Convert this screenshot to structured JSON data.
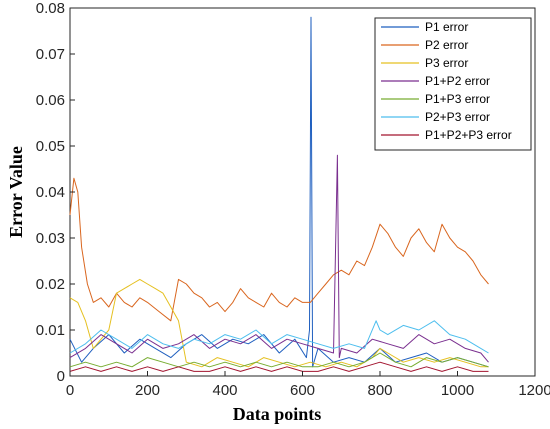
{
  "chart_data": {
    "type": "line",
    "title": "",
    "xlabel": "Data points",
    "ylabel": "Error Value",
    "xlim": [
      0,
      1200
    ],
    "ylim": [
      0,
      0.08
    ],
    "xticks": [
      "0",
      "200",
      "400",
      "600",
      "800",
      "1000",
      "1200"
    ],
    "yticks": [
      "0",
      "0.01",
      "0.02",
      "0.03",
      "0.04",
      "0.05",
      "0.06",
      "0.07",
      "0.08"
    ],
    "grid": false,
    "legend_position": "top-right",
    "series": [
      {
        "name": "P1 error",
        "color": "#1f5fbf",
        "x": [
          0,
          30,
          60,
          100,
          140,
          180,
          220,
          260,
          300,
          340,
          380,
          420,
          460,
          500,
          540,
          580,
          610,
          618,
          622,
          626,
          640,
          680,
          720,
          760,
          800,
          840,
          880,
          920,
          960,
          1000,
          1040,
          1080
        ],
        "y": [
          0.008,
          0.003,
          0.006,
          0.009,
          0.005,
          0.008,
          0.006,
          0.004,
          0.007,
          0.009,
          0.006,
          0.008,
          0.007,
          0.009,
          0.005,
          0.008,
          0.004,
          0.01,
          0.078,
          0.002,
          0.006,
          0.003,
          0.004,
          0.003,
          0.006,
          0.003,
          0.004,
          0.005,
          0.003,
          0.004,
          0.003,
          0.002
        ]
      },
      {
        "name": "P2 error",
        "color": "#d9661f",
        "x": [
          0,
          10,
          20,
          30,
          45,
          60,
          80,
          100,
          120,
          140,
          160,
          180,
          200,
          230,
          260,
          280,
          300,
          320,
          340,
          360,
          380,
          400,
          420,
          440,
          460,
          480,
          500,
          520,
          540,
          560,
          580,
          600,
          620,
          640,
          660,
          680,
          700,
          720,
          740,
          760,
          780,
          800,
          820,
          840,
          860,
          880,
          900,
          920,
          940,
          960,
          980,
          1000,
          1020,
          1040,
          1060,
          1080
        ],
        "y": [
          0.035,
          0.043,
          0.04,
          0.028,
          0.02,
          0.016,
          0.017,
          0.015,
          0.018,
          0.016,
          0.015,
          0.017,
          0.016,
          0.014,
          0.012,
          0.021,
          0.02,
          0.018,
          0.017,
          0.015,
          0.016,
          0.014,
          0.016,
          0.019,
          0.017,
          0.016,
          0.015,
          0.018,
          0.016,
          0.015,
          0.017,
          0.016,
          0.016,
          0.018,
          0.02,
          0.022,
          0.023,
          0.022,
          0.025,
          0.024,
          0.028,
          0.033,
          0.031,
          0.028,
          0.026,
          0.03,
          0.032,
          0.029,
          0.027,
          0.033,
          0.03,
          0.028,
          0.027,
          0.025,
          0.022,
          0.02
        ]
      },
      {
        "name": "P3 error",
        "color": "#e5c020",
        "x": [
          0,
          20,
          40,
          60,
          80,
          100,
          120,
          140,
          160,
          180,
          200,
          220,
          240,
          260,
          280,
          300,
          340,
          380,
          420,
          460,
          500,
          540,
          580,
          620,
          660,
          700,
          740,
          780,
          800,
          820,
          860,
          900,
          940,
          980,
          1020,
          1060,
          1080
        ],
        "y": [
          0.017,
          0.016,
          0.012,
          0.006,
          0.008,
          0.01,
          0.018,
          0.019,
          0.02,
          0.021,
          0.02,
          0.019,
          0.018,
          0.015,
          0.012,
          0.003,
          0.002,
          0.004,
          0.003,
          0.002,
          0.004,
          0.003,
          0.002,
          0.003,
          0.002,
          0.003,
          0.002,
          0.004,
          0.006,
          0.005,
          0.003,
          0.004,
          0.003,
          0.004,
          0.003,
          0.002,
          0.002
        ]
      },
      {
        "name": "P1+P2 error",
        "color": "#7a2f8f",
        "x": [
          0,
          40,
          80,
          120,
          160,
          200,
          240,
          280,
          320,
          360,
          400,
          440,
          480,
          520,
          560,
          600,
          640,
          680,
          690,
          695,
          700,
          740,
          780,
          820,
          860,
          900,
          940,
          980,
          1020,
          1060,
          1080
        ],
        "y": [
          0.004,
          0.006,
          0.009,
          0.007,
          0.005,
          0.008,
          0.006,
          0.007,
          0.009,
          0.006,
          0.008,
          0.007,
          0.009,
          0.006,
          0.008,
          0.007,
          0.006,
          0.005,
          0.048,
          0.004,
          0.006,
          0.005,
          0.008,
          0.007,
          0.006,
          0.009,
          0.007,
          0.008,
          0.006,
          0.005,
          0.003
        ]
      },
      {
        "name": "P1+P3 error",
        "color": "#77ac30",
        "x": [
          0,
          40,
          80,
          120,
          160,
          200,
          240,
          280,
          320,
          360,
          400,
          440,
          480,
          520,
          560,
          600,
          640,
          680,
          720,
          760,
          800,
          840,
          880,
          920,
          960,
          1000,
          1040,
          1080
        ],
        "y": [
          0.002,
          0.003,
          0.002,
          0.003,
          0.002,
          0.004,
          0.003,
          0.002,
          0.003,
          0.002,
          0.003,
          0.002,
          0.003,
          0.002,
          0.003,
          0.002,
          0.002,
          0.003,
          0.002,
          0.003,
          0.005,
          0.003,
          0.002,
          0.004,
          0.003,
          0.004,
          0.003,
          0.002
        ]
      },
      {
        "name": "P2+P3 error",
        "color": "#4dbeee",
        "x": [
          0,
          40,
          80,
          120,
          160,
          200,
          240,
          280,
          320,
          360,
          400,
          440,
          480,
          520,
          560,
          600,
          640,
          680,
          720,
          760,
          790,
          800,
          820,
          860,
          900,
          940,
          980,
          1020,
          1060,
          1080
        ],
        "y": [
          0.005,
          0.007,
          0.01,
          0.008,
          0.006,
          0.009,
          0.007,
          0.006,
          0.008,
          0.007,
          0.009,
          0.008,
          0.01,
          0.007,
          0.009,
          0.008,
          0.007,
          0.006,
          0.007,
          0.006,
          0.012,
          0.01,
          0.009,
          0.011,
          0.01,
          0.012,
          0.009,
          0.008,
          0.006,
          0.005
        ]
      },
      {
        "name": "P1+P2+P3 error",
        "color": "#a2142f",
        "x": [
          0,
          40,
          80,
          120,
          160,
          200,
          240,
          280,
          320,
          360,
          400,
          440,
          480,
          520,
          560,
          600,
          640,
          680,
          720,
          760,
          800,
          840,
          880,
          920,
          960,
          1000,
          1040,
          1080
        ],
        "y": [
          0.001,
          0.002,
          0.001,
          0.002,
          0.001,
          0.002,
          0.001,
          0.002,
          0.001,
          0.001,
          0.002,
          0.001,
          0.002,
          0.001,
          0.002,
          0.001,
          0.001,
          0.002,
          0.001,
          0.002,
          0.003,
          0.002,
          0.001,
          0.002,
          0.001,
          0.002,
          0.001,
          0.001
        ]
      }
    ]
  }
}
